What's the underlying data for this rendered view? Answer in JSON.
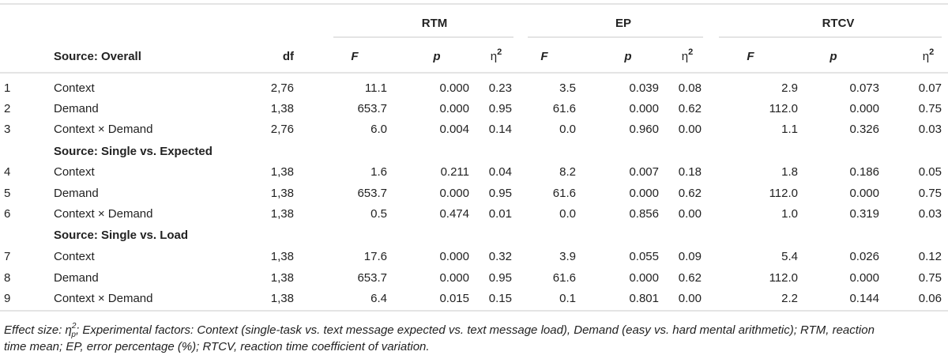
{
  "table": {
    "groups": [
      "RTM",
      "EP",
      "RTCV"
    ],
    "header": {
      "df": "df",
      "stats": [
        {
          "text": "F"
        },
        {
          "text": "p"
        },
        {
          "symbol": "η",
          "sup": "2"
        }
      ]
    },
    "sections": [
      {
        "title": "Source: Overall",
        "rows": [
          {
            "n": "1",
            "source": "Context",
            "df": "2,76",
            "cells": [
              "11.1",
              "0.000",
              "0.23",
              "3.5",
              "0.039",
              "0.08",
              "2.9",
              "0.073",
              "0.07"
            ]
          },
          {
            "n": "2",
            "source": "Demand",
            "df": "1,38",
            "cells": [
              "653.7",
              "0.000",
              "0.95",
              "61.6",
              "0.000",
              "0.62",
              "112.0",
              "0.000",
              "0.75"
            ]
          },
          {
            "n": "3",
            "source": "Context × Demand",
            "df": "2,76",
            "cells": [
              "6.0",
              "0.004",
              "0.14",
              "0.0",
              "0.960",
              "0.00",
              "1.1",
              "0.326",
              "0.03"
            ]
          }
        ]
      },
      {
        "title": "Source: Single vs. Expected",
        "rows": [
          {
            "n": "4",
            "source": "Context",
            "df": "1,38",
            "cells": [
              "1.6",
              "0.211",
              "0.04",
              "8.2",
              "0.007",
              "0.18",
              "1.8",
              "0.186",
              "0.05"
            ]
          },
          {
            "n": "5",
            "source": "Demand",
            "df": "1,38",
            "cells": [
              "653.7",
              "0.000",
              "0.95",
              "61.6",
              "0.000",
              "0.62",
              "112.0",
              "0.000",
              "0.75"
            ]
          },
          {
            "n": "6",
            "source": "Context × Demand",
            "df": "1,38",
            "cells": [
              "0.5",
              "0.474",
              "0.01",
              "0.0",
              "0.856",
              "0.00",
              "1.0",
              "0.319",
              "0.03"
            ]
          }
        ]
      },
      {
        "title": "Source: Single vs. Load",
        "rows": [
          {
            "n": "7",
            "source": "Context",
            "df": "1,38",
            "cells": [
              "17.6",
              "0.000",
              "0.32",
              "3.9",
              "0.055",
              "0.09",
              "5.4",
              "0.026",
              "0.12"
            ]
          },
          {
            "n": "8",
            "source": "Demand",
            "df": "1,38",
            "cells": [
              "653.7",
              "0.000",
              "0.95",
              "61.6",
              "0.000",
              "0.62",
              "112.0",
              "0.000",
              "0.75"
            ]
          },
          {
            "n": "9",
            "source": "Context × Demand",
            "df": "1,38",
            "cells": [
              "6.4",
              "0.015",
              "0.15",
              "0.1",
              "0.801",
              "0.00",
              "2.2",
              "0.144",
              "0.06"
            ]
          }
        ]
      }
    ],
    "footnote": {
      "label": "Effect size: ",
      "symbol": "η",
      "sub": "p",
      "sup": "2",
      "line1": "; Experimental factors: Context (single-task vs. text message expected vs. text message load), Demand (easy vs. hard mental arithmetic); RTM, reaction",
      "line2": "time mean; EP, error percentage (%); RTCV, reaction time coefficient of variation."
    }
  }
}
